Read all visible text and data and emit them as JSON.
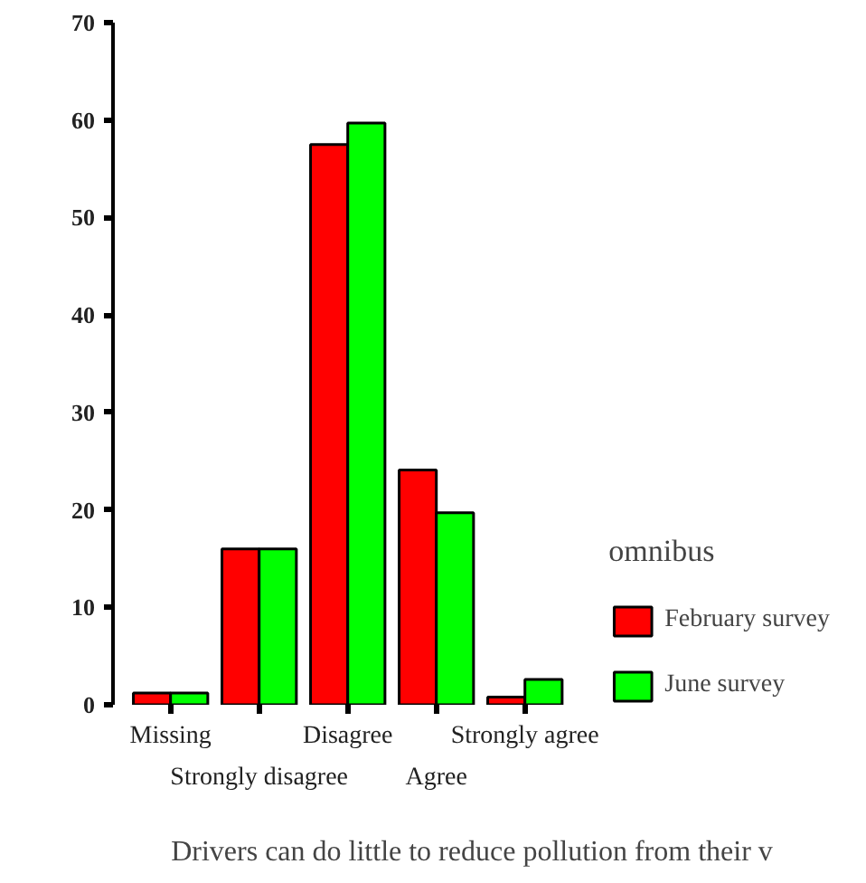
{
  "chart_data": {
    "type": "bar",
    "xlabel": "Drivers can do little to reduce pollution from their v",
    "legend_title": "omnibus",
    "categories": [
      "Missing",
      "Strongly disagree",
      "Disagree",
      "Agree",
      "Strongly agree"
    ],
    "series": [
      {
        "name": "February survey",
        "color": "#ff0000",
        "values": [
          1.2,
          16.0,
          57.5,
          24.1,
          0.8
        ]
      },
      {
        "name": "June survey",
        "color": "#00ff00",
        "values": [
          1.2,
          16.0,
          59.7,
          19.7,
          2.6
        ]
      }
    ],
    "ylim": [
      0,
      70
    ],
    "yticks": [
      0,
      10,
      20,
      30,
      40,
      50,
      60,
      70
    ],
    "grid": false,
    "legend": "right"
  }
}
